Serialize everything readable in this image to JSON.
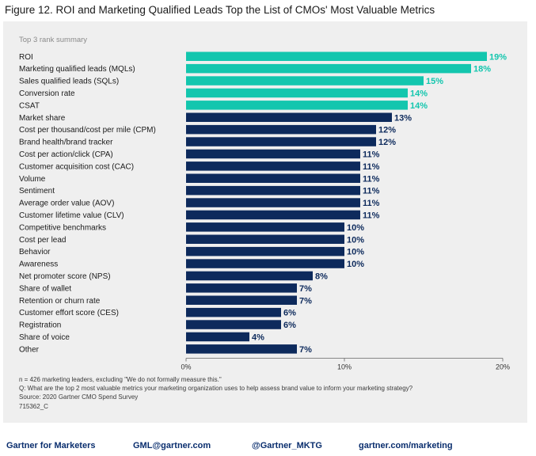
{
  "figure_title": "Figure 12. ROI and Marketing Qualified Leads Top the List of CMOs' Most Valuable Metrics",
  "colors": {
    "highlight": "#13C6AE",
    "default": "#0D2A5C",
    "panel_bg": "#EFEFEF",
    "footer_text": "#0A2E6E"
  },
  "chart_data": {
    "type": "bar",
    "orientation": "horizontal",
    "subtitle": "Top 3 rank summary",
    "categories": [
      "ROI",
      "Marketing qualified leads (MQLs)",
      "Sales qualified leads (SQLs)",
      "Conversion rate",
      "CSAT",
      "Market share",
      "Cost per thousand/cost per mile (CPM)",
      "Brand health/brand tracker",
      "Cost per action/click (CPA)",
      "Customer acquisition cost (CAC)",
      "Volume",
      "Sentiment",
      "Average order value (AOV)",
      "Customer lifetime value (CLV)",
      "Competitive benchmarks",
      "Cost per lead",
      "Behavior",
      "Awareness",
      "Net promoter score (NPS)",
      "Share of wallet",
      "Retention or churn rate",
      "Customer effort score (CES)",
      "Registration",
      "Share of voice",
      "Other"
    ],
    "values": [
      19,
      18,
      15,
      14,
      14,
      13,
      12,
      12,
      11,
      11,
      11,
      11,
      11,
      11,
      10,
      10,
      10,
      10,
      8,
      7,
      7,
      6,
      6,
      4,
      7
    ],
    "value_labels": [
      "19%",
      "18%",
      "15%",
      "14%",
      "14%",
      "13%",
      "12%",
      "12%",
      "11%",
      "11%",
      "11%",
      "11%",
      "11%",
      "11%",
      "10%",
      "10%",
      "10%",
      "10%",
      "8%",
      "7%",
      "7%",
      "6%",
      "6%",
      "4%",
      "7%"
    ],
    "highlighted": [
      true,
      true,
      true,
      true,
      true,
      false,
      false,
      false,
      false,
      false,
      false,
      false,
      false,
      false,
      false,
      false,
      false,
      false,
      false,
      false,
      false,
      false,
      false,
      false,
      false
    ],
    "xlim": [
      0,
      20
    ],
    "xticks": [
      0,
      10,
      20
    ],
    "xtick_labels": [
      "0%",
      "10%",
      "20%"
    ],
    "grid": false,
    "legend": "none"
  },
  "notes": [
    "n = 426 marketing leaders, excluding \"We do not formally measure this.\"",
    "Q: What are the top 2 most valuable metrics your marketing organization uses to help assess brand value to inform your marketing strategy?",
    "Source: 2020 Gartner CMO Spend Survey",
    "715362_C"
  ],
  "footer": {
    "brand": "Gartner for Marketers",
    "email": "GML@gartner.com",
    "twitter": "@Gartner_MKTG",
    "website": "gartner.com/marketing"
  }
}
